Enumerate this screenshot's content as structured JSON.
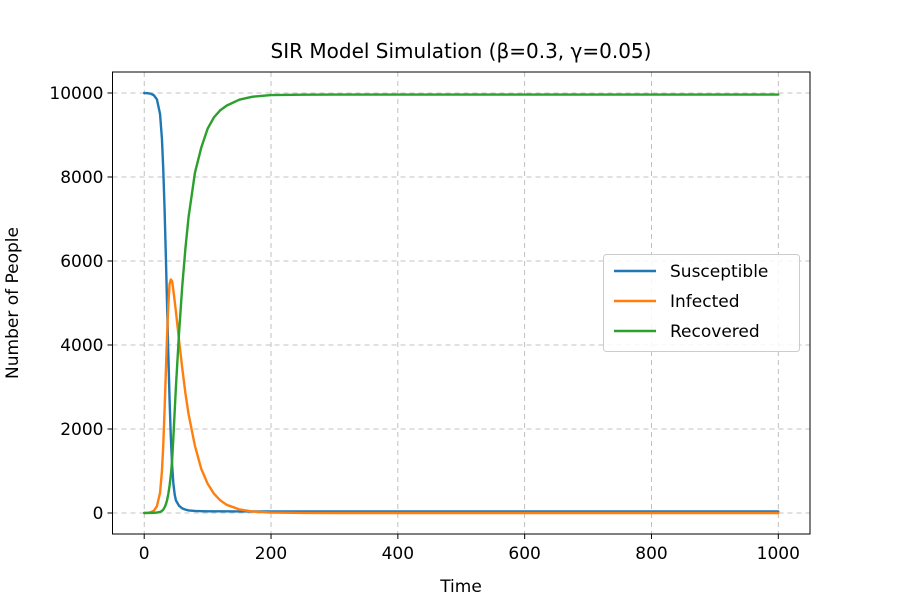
{
  "chart_data": {
    "type": "line",
    "title": "SIR Model Simulation (β=0.3, γ=0.05)",
    "xlabel": "Time",
    "ylabel": "Number of People",
    "xlim": [
      -50,
      1050
    ],
    "ylim": [
      -500,
      10500
    ],
    "xticks": [
      0,
      200,
      400,
      600,
      800,
      1000
    ],
    "yticks": [
      0,
      2000,
      4000,
      6000,
      8000,
      10000
    ],
    "grid": true,
    "legend_position": "center-right",
    "series": [
      {
        "name": "Susceptible",
        "color": "#1f77b4",
        "x": [
          0,
          5,
          10,
          15,
          20,
          25,
          28,
          30,
          32,
          34,
          36,
          38,
          40,
          42,
          44,
          46,
          48,
          50,
          55,
          60,
          65,
          70,
          80,
          90,
          100,
          120,
          150,
          200,
          300,
          500,
          700,
          1000
        ],
        "y": [
          9999,
          9995,
          9985,
          9950,
          9850,
          9500,
          8900,
          8200,
          7300,
          6200,
          5000,
          3800,
          2700,
          1800,
          1150,
          700,
          450,
          300,
          170,
          110,
          80,
          62,
          50,
          44,
          41,
          39,
          38,
          38,
          38,
          38,
          38,
          38
        ]
      },
      {
        "name": "Infected",
        "color": "#ff7f0e",
        "x": [
          0,
          5,
          10,
          15,
          20,
          25,
          28,
          30,
          32,
          34,
          36,
          38,
          40,
          42,
          44,
          46,
          48,
          50,
          55,
          60,
          65,
          70,
          80,
          90,
          100,
          110,
          120,
          130,
          150,
          170,
          200,
          250,
          300,
          400,
          500,
          700,
          1000
        ],
        "y": [
          1,
          3,
          15,
          50,
          160,
          480,
          1000,
          1600,
          2400,
          3300,
          4200,
          4950,
          5450,
          5560,
          5520,
          5300,
          5050,
          4800,
          4100,
          3450,
          2850,
          2350,
          1600,
          1050,
          700,
          460,
          300,
          195,
          85,
          36,
          10,
          2,
          0,
          0,
          0,
          0,
          0
        ]
      },
      {
        "name": "Recovered",
        "color": "#2ca02c",
        "x": [
          0,
          5,
          10,
          15,
          20,
          25,
          28,
          30,
          32,
          34,
          36,
          38,
          40,
          42,
          44,
          46,
          48,
          50,
          55,
          60,
          65,
          70,
          80,
          90,
          100,
          110,
          120,
          130,
          150,
          170,
          200,
          250,
          300,
          400,
          600,
          800,
          1000
        ],
        "y": [
          0,
          2,
          3,
          5,
          10,
          25,
          50,
          80,
          130,
          200,
          300,
          450,
          650,
          900,
          1250,
          1800,
          2400,
          3000,
          4300,
          5400,
          6300,
          7050,
          8100,
          8700,
          9150,
          9420,
          9590,
          9700,
          9840,
          9910,
          9950,
          9960,
          9962,
          9962,
          9962,
          9962,
          9962
        ]
      }
    ]
  }
}
